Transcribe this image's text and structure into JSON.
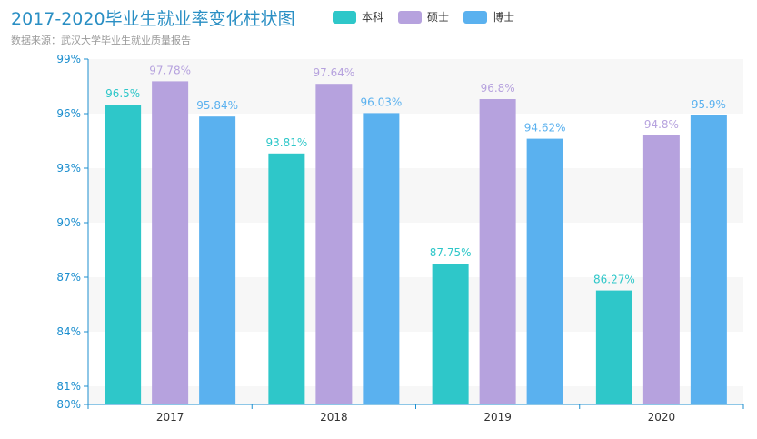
{
  "colors": {
    "bachelor": "#2ec7c9",
    "master": "#b6a2de",
    "doctor": "#5ab1ef",
    "axis": "#1d8fcf",
    "band": "#f7f7f7"
  },
  "chart_data": {
    "type": "bar",
    "title": "2017-2020毕业生就业率变化柱状图",
    "subtitle": "数据来源：武汉大学毕业生就业质量报告",
    "categories": [
      "2017",
      "2018",
      "2019",
      "2020"
    ],
    "series": [
      {
        "name": "本科",
        "values": [
          96.5,
          93.81,
          87.75,
          86.27
        ],
        "labels": [
          "96.5%",
          "93.81%",
          "87.75%",
          "86.27%"
        ]
      },
      {
        "name": "硕士",
        "values": [
          97.78,
          97.64,
          96.8,
          94.8
        ],
        "labels": [
          "97.78%",
          "97.64%",
          "96.8%",
          "94.8%"
        ]
      },
      {
        "name": "博士",
        "values": [
          95.84,
          96.03,
          94.62,
          95.9
        ],
        "labels": [
          "95.84%",
          "96.03%",
          "94.62%",
          "95.9%"
        ]
      }
    ],
    "y_ticks": [
      80,
      81,
      84,
      87,
      90,
      93,
      96,
      99
    ],
    "y_tick_labels": [
      "80%",
      "81%",
      "84%",
      "87%",
      "90%",
      "93%",
      "96%",
      "99%"
    ],
    "ylim": [
      80,
      99
    ],
    "legend_position": "top-center"
  }
}
